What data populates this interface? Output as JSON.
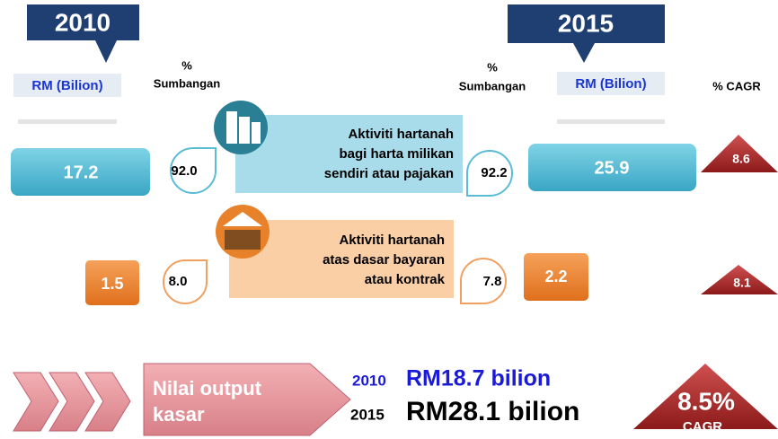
{
  "header": {
    "year_2010": "2010",
    "year_2015": "2015",
    "rm_label_2010": "RM (Bilion)",
    "rm_label_2015": "RM (Bilion)",
    "share_label_2010": [
      "%",
      "Sumbangan"
    ],
    "share_label_2015": [
      "%",
      "Sumbangan"
    ],
    "cagr_label": "% CAGR"
  },
  "rows": [
    {
      "label": [
        "Aktiviti hartanah",
        "bagi harta milikan",
        "sendiri atau pajakan"
      ],
      "rm_2010": "17.2",
      "share_2010": "92.0",
      "share_2015": "92.2",
      "rm_2015": "25.9",
      "cagr": "8.6"
    },
    {
      "label": [
        "Aktiviti hartanah",
        "atas dasar bayaran",
        "atau kontrak"
      ],
      "rm_2010": "1.5",
      "share_2010": "8.0",
      "share_2015": "7.8",
      "rm_2015": "2.2",
      "cagr": "8.1"
    }
  ],
  "footer": {
    "title": [
      "Nilai output",
      "kasar"
    ],
    "year_2010": "2010",
    "value_2010": "RM18.7 bilion",
    "year_2015": "2015",
    "value_2015": "RM28.1 bilion",
    "cagr_value": "8.5%",
    "cagr_label": "CAGR"
  }
}
